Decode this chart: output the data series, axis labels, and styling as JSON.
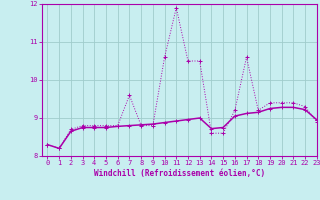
{
  "xlabel": "Windchill (Refroidissement éolien,°C)",
  "bg_color": "#c8eef0",
  "grid_color": "#a0cccc",
  "line_color": "#aa00aa",
  "spine_color": "#aa00aa",
  "x_hours": [
    0,
    1,
    2,
    3,
    4,
    5,
    6,
    7,
    8,
    9,
    10,
    11,
    12,
    13,
    14,
    15,
    16,
    17,
    18,
    19,
    20,
    21,
    22,
    23
  ],
  "temp_values": [
    8.3,
    8.2,
    8.7,
    8.8,
    8.8,
    8.8,
    8.8,
    9.6,
    8.8,
    8.8,
    10.6,
    11.9,
    10.5,
    10.5,
    8.6,
    8.6,
    9.2,
    10.6,
    9.2,
    9.4,
    9.4,
    9.4,
    9.3,
    8.9
  ],
  "windchill_values": [
    8.3,
    8.2,
    8.65,
    8.75,
    8.75,
    8.75,
    8.78,
    8.8,
    8.82,
    8.84,
    8.88,
    8.92,
    8.96,
    9.0,
    8.72,
    8.75,
    9.05,
    9.12,
    9.15,
    9.25,
    9.28,
    9.28,
    9.22,
    8.95
  ],
  "ylim": [
    8.0,
    12.0
  ],
  "xlim": [
    -0.5,
    23
  ],
  "yticks": [
    8,
    9,
    10,
    11,
    12
  ],
  "xlabel_fontsize": 5.5,
  "tick_fontsize": 5.0
}
